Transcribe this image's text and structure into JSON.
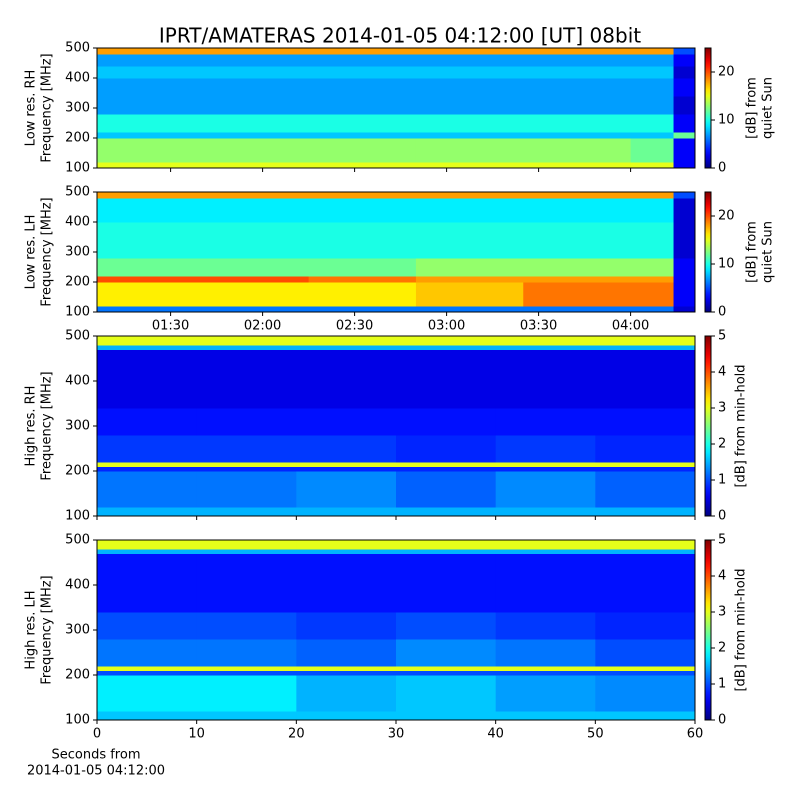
{
  "title": "IPRT/AMATERAS 2014-01-05 04:12:00 [UT]   08bit",
  "chart_data": [
    {
      "type": "heatmap",
      "colormap": "jet",
      "ylabel": [
        "Low res. RH",
        "Frequency [MHz]"
      ],
      "clabel": [
        "[dB] from",
        "quiet Sun"
      ],
      "xlim": [
        66,
        261
      ],
      "ylim": [
        100,
        500
      ],
      "yticks": [
        100,
        200,
        300,
        400,
        500
      ],
      "clim": [
        0,
        25
      ],
      "cticks": [
        0,
        10,
        20
      ],
      "x_edges": [
        66,
        100,
        135,
        170,
        205,
        240,
        254,
        261
      ],
      "y_edges": [
        100,
        120,
        200,
        220,
        280,
        340,
        400,
        440,
        480,
        500
      ],
      "values": [
        [
          15,
          15,
          15,
          15,
          15,
          15,
          3
        ],
        [
          13,
          13,
          13,
          13,
          13,
          12,
          3
        ],
        [
          8,
          8,
          8,
          8,
          8,
          8,
          12
        ],
        [
          10,
          10,
          10,
          10,
          10,
          10,
          3
        ],
        [
          7,
          7,
          7,
          7,
          7,
          7,
          2
        ],
        [
          7,
          7,
          7,
          7,
          7,
          7,
          3
        ],
        [
          8,
          8,
          8,
          8,
          8,
          8,
          2
        ],
        [
          7,
          7,
          7,
          7,
          7,
          7,
          3
        ],
        [
          18,
          18,
          18,
          18,
          18,
          18,
          5
        ]
      ]
    },
    {
      "type": "heatmap",
      "colormap": "jet",
      "ylabel": [
        "Low res. LH",
        "Frequency [MHz]"
      ],
      "clabel": [
        "[dB] from",
        "quiet Sun"
      ],
      "xlim": [
        66,
        261
      ],
      "ylim": [
        100,
        500
      ],
      "yticks": [
        100,
        200,
        300,
        400,
        500
      ],
      "xticks": [
        {
          "value": 90,
          "label": "01:30"
        },
        {
          "value": 120,
          "label": "02:00"
        },
        {
          "value": 150,
          "label": "02:30"
        },
        {
          "value": 180,
          "label": "03:00"
        },
        {
          "value": 210,
          "label": "03:30"
        },
        {
          "value": 240,
          "label": "04:00"
        }
      ],
      "clim": [
        0,
        25
      ],
      "cticks": [
        0,
        10,
        20
      ],
      "x_edges": [
        66,
        100,
        135,
        170,
        205,
        240,
        254,
        261
      ],
      "y_edges": [
        100,
        120,
        200,
        220,
        280,
        340,
        400,
        440,
        480,
        500
      ],
      "values": [
        [
          6,
          6,
          6,
          6,
          6,
          6,
          2
        ],
        [
          16,
          16,
          16,
          17,
          19,
          19,
          3
        ],
        [
          20,
          20,
          19,
          18,
          18,
          18,
          3
        ],
        [
          12,
          12,
          12,
          13,
          13,
          13,
          3
        ],
        [
          10,
          10,
          10,
          10,
          10,
          10,
          2
        ],
        [
          10,
          10,
          10,
          10,
          10,
          10,
          2
        ],
        [
          9,
          9,
          9,
          9,
          9,
          9,
          2
        ],
        [
          9,
          9,
          9,
          9,
          9,
          9,
          2
        ],
        [
          18,
          18,
          18,
          18,
          18,
          18,
          5
        ]
      ]
    },
    {
      "type": "heatmap",
      "colormap": "jet",
      "ylabel": [
        "High res. RH",
        "Frequency [MHz]"
      ],
      "clabel": [
        "[dB] from min-hold"
      ],
      "xlim": [
        0,
        60
      ],
      "ylim": [
        100,
        500
      ],
      "yticks": [
        100,
        200,
        300,
        400,
        500
      ],
      "clim": [
        0,
        5
      ],
      "cticks": [
        0,
        1,
        2,
        3,
        4,
        5
      ],
      "x_edges": [
        0,
        10,
        20,
        30,
        40,
        50,
        60
      ],
      "y_edges": [
        100,
        120,
        200,
        210,
        220,
        280,
        340,
        400,
        470,
        480,
        500
      ],
      "values": [
        [
          1.5,
          1.5,
          1.5,
          1.5,
          1.5,
          1.5
        ],
        [
          1.2,
          1.2,
          1.3,
          1.1,
          1.3,
          1.1
        ],
        [
          0.8,
          0.8,
          0.8,
          0.8,
          0.8,
          0.8
        ],
        [
          3,
          3,
          3,
          3,
          3,
          3
        ],
        [
          0.9,
          0.9,
          0.9,
          0.8,
          0.9,
          0.8
        ],
        [
          0.7,
          0.7,
          0.7,
          0.7,
          0.7,
          0.7
        ],
        [
          0.5,
          0.5,
          0.5,
          0.5,
          0.5,
          0.5
        ],
        [
          0.5,
          0.5,
          0.5,
          0.5,
          0.5,
          0.5
        ],
        [
          1.5,
          1.5,
          1.5,
          1.5,
          1.5,
          1.5
        ],
        [
          3,
          3,
          3,
          3,
          3,
          3
        ]
      ]
    },
    {
      "type": "heatmap",
      "colormap": "jet",
      "ylabel": [
        "High res. LH",
        "Frequency [MHz]"
      ],
      "clabel": [
        "[dB] from min-hold"
      ],
      "xlabel": [
        "Seconds from",
        "2014-01-05 04:12:00"
      ],
      "xlim": [
        0,
        60
      ],
      "ylim": [
        100,
        500
      ],
      "yticks": [
        100,
        200,
        300,
        400,
        500
      ],
      "xticks": [
        0,
        10,
        20,
        30,
        40,
        50,
        60
      ],
      "clim": [
        0,
        5
      ],
      "cticks": [
        0,
        1,
        2,
        3,
        4,
        5
      ],
      "x_edges": [
        0,
        10,
        20,
        30,
        40,
        50,
        60
      ],
      "y_edges": [
        100,
        120,
        200,
        210,
        220,
        280,
        340,
        400,
        470,
        480,
        500
      ],
      "values": [
        [
          1.6,
          1.6,
          1.6,
          1.6,
          1.6,
          1.6
        ],
        [
          1.8,
          1.8,
          1.5,
          1.6,
          1.4,
          1.3
        ],
        [
          1,
          1,
          1,
          1,
          1,
          1
        ],
        [
          3,
          3,
          3,
          3,
          3,
          3
        ],
        [
          1.2,
          1.2,
          1.1,
          1.3,
          1.2,
          1
        ],
        [
          1,
          1,
          0.9,
          1,
          0.9,
          0.8
        ],
        [
          0.7,
          0.7,
          0.7,
          0.7,
          0.7,
          0.7
        ],
        [
          0.7,
          0.7,
          0.7,
          0.7,
          0.7,
          0.7
        ],
        [
          1.5,
          1.5,
          1.5,
          1.5,
          1.5,
          1.5
        ],
        [
          3,
          3,
          3,
          3,
          3,
          3
        ]
      ]
    }
  ]
}
